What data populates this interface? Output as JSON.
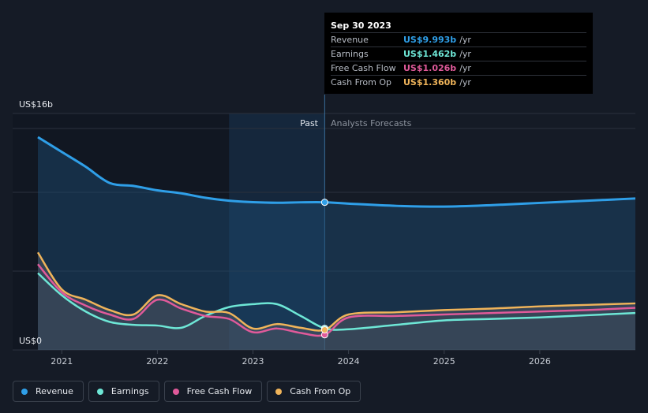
{
  "tooltip": {
    "date": "Sep 30 2023",
    "rows": [
      {
        "label": "Revenue",
        "value": "US$9.993b",
        "unit": "/yr",
        "color": "#2f9fe8"
      },
      {
        "label": "Earnings",
        "value": "US$1.462b",
        "unit": "/yr",
        "color": "#6ee7d6"
      },
      {
        "label": "Free Cash Flow",
        "value": "US$1.026b",
        "unit": "/yr",
        "color": "#e05a9a"
      },
      {
        "label": "Cash From Op",
        "value": "US$1.360b",
        "unit": "/yr",
        "color": "#f0b45a"
      }
    ]
  },
  "legend": [
    {
      "label": "Revenue",
      "color": "#2f9fe8"
    },
    {
      "label": "Earnings",
      "color": "#6ee7d6"
    },
    {
      "label": "Free Cash Flow",
      "color": "#e05a9a"
    },
    {
      "label": "Cash From Op",
      "color": "#f0b45a"
    }
  ],
  "chart_data": {
    "type": "line",
    "ylabel_top": "US$16b",
    "ylabel_bottom": "US$0",
    "ylim": [
      0,
      16
    ],
    "xlim": [
      2020.75,
      2027.0
    ],
    "x_ticks": [
      "2021",
      "2022",
      "2023",
      "2024",
      "2025",
      "2026"
    ],
    "zones": {
      "past_label": "Past",
      "forecast_label": "Analysts Forecasts",
      "divider": 2023.75,
      "highlight_start": 2022.75
    },
    "series": [
      {
        "name": "Revenue",
        "color": "#2f9fe8",
        "x": [
          2020.75,
          2021.0,
          2021.25,
          2021.5,
          2021.75,
          2022.0,
          2022.25,
          2022.5,
          2022.75,
          2023.0,
          2023.25,
          2023.5,
          2023.75,
          2024.0,
          2024.5,
          2025.0,
          2025.5,
          2026.0,
          2026.5,
          2027.0
        ],
        "y": [
          14.4,
          13.4,
          12.4,
          11.3,
          11.1,
          10.8,
          10.6,
          10.3,
          10.1,
          10.0,
          9.96,
          9.99,
          9.993,
          9.9,
          9.75,
          9.7,
          9.8,
          9.95,
          10.1,
          10.25
        ]
      },
      {
        "name": "Earnings",
        "color": "#6ee7d6",
        "x": [
          2020.75,
          2021.0,
          2021.25,
          2021.5,
          2021.75,
          2022.0,
          2022.25,
          2022.5,
          2022.75,
          2023.0,
          2023.25,
          2023.5,
          2023.75,
          2024.0,
          2024.5,
          2025.0,
          2025.5,
          2026.0,
          2026.5,
          2027.0
        ],
        "y": [
          5.2,
          3.7,
          2.6,
          1.9,
          1.7,
          1.65,
          1.5,
          2.3,
          2.9,
          3.1,
          3.1,
          2.3,
          1.462,
          1.4,
          1.7,
          2.0,
          2.1,
          2.2,
          2.35,
          2.5
        ]
      },
      {
        "name": "Free Cash Flow",
        "color": "#e05a9a",
        "x": [
          2020.75,
          2021.0,
          2021.25,
          2021.5,
          2021.75,
          2022.0,
          2022.25,
          2022.5,
          2022.75,
          2023.0,
          2023.25,
          2023.5,
          2023.75,
          2024.0,
          2024.5,
          2025.0,
          2025.5,
          2026.0,
          2026.5,
          2027.0
        ],
        "y": [
          5.8,
          3.9,
          3.0,
          2.4,
          2.1,
          3.4,
          2.8,
          2.3,
          2.1,
          1.2,
          1.45,
          1.15,
          1.026,
          2.2,
          2.3,
          2.4,
          2.5,
          2.6,
          2.7,
          2.85
        ]
      },
      {
        "name": "Cash From Op",
        "color": "#f0b45a",
        "x": [
          2020.75,
          2021.0,
          2021.25,
          2021.5,
          2021.75,
          2022.0,
          2022.25,
          2022.5,
          2022.75,
          2023.0,
          2023.25,
          2023.5,
          2023.75,
          2024.0,
          2024.5,
          2025.0,
          2025.5,
          2026.0,
          2026.5,
          2027.0
        ],
        "y": [
          6.6,
          4.1,
          3.4,
          2.7,
          2.4,
          3.7,
          3.1,
          2.6,
          2.5,
          1.45,
          1.75,
          1.5,
          1.36,
          2.4,
          2.55,
          2.7,
          2.8,
          2.95,
          3.05,
          3.15
        ]
      }
    ]
  }
}
